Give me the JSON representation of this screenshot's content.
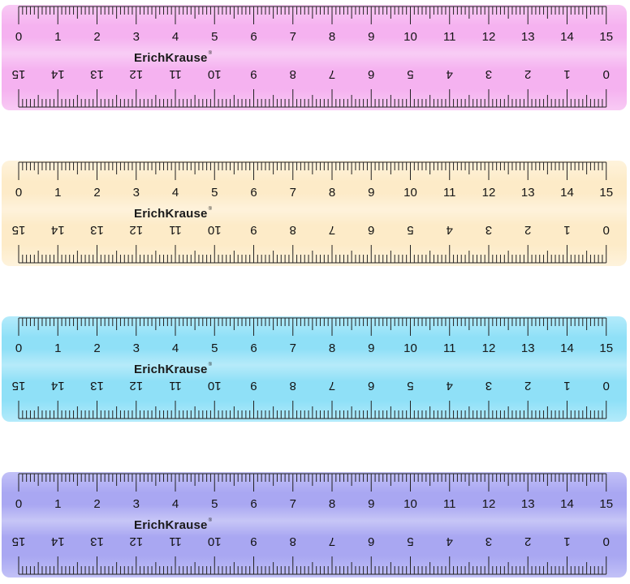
{
  "brand": "ErichKrause",
  "brand_mark": "®",
  "scale": {
    "top_labels": [
      "0",
      "1",
      "2",
      "3",
      "4",
      "5",
      "6",
      "7",
      "8",
      "9",
      "10",
      "11",
      "12",
      "13",
      "14",
      "15"
    ],
    "bottom_labels": [
      "15",
      "14",
      "13",
      "12",
      "11",
      "10",
      "9",
      "8",
      "7",
      "6",
      "5",
      "4",
      "3",
      "2",
      "1",
      "0"
    ]
  },
  "rulers": [
    {
      "name": "pink-ruler",
      "color": "#f5b2f0",
      "edge": "#f8caf4"
    },
    {
      "name": "yellow-ruler",
      "color": "#fdebc8",
      "edge": "#fef3dc"
    },
    {
      "name": "blue-ruler",
      "color": "#8fe0f7",
      "edge": "#b4ebfb"
    },
    {
      "name": "violet-ruler",
      "color": "#a9a7f2",
      "edge": "#c2c1f7"
    }
  ]
}
